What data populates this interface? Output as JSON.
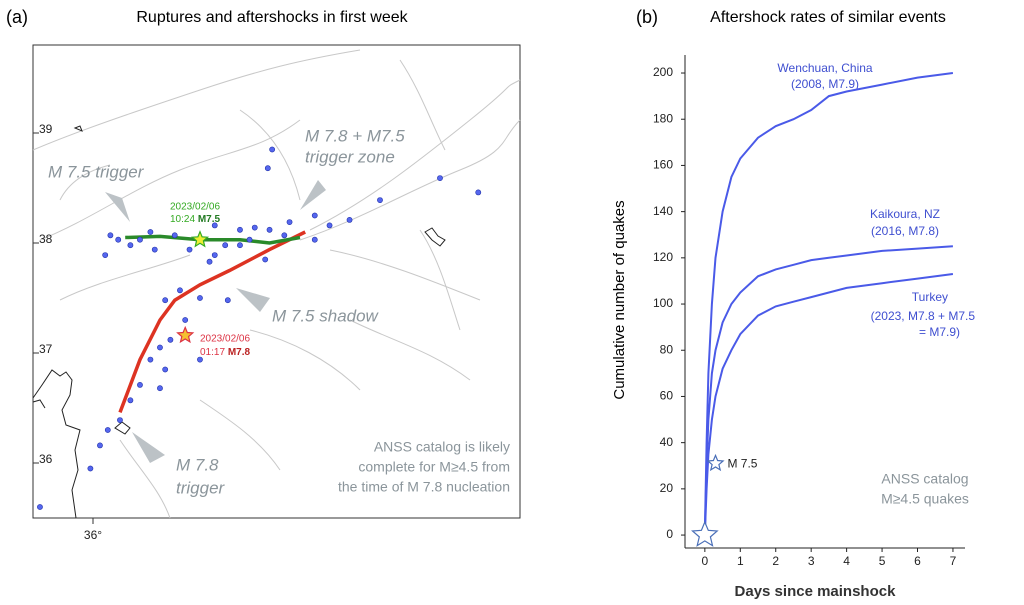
{
  "chart_data": [
    {
      "type": "map",
      "panel": "(a)",
      "title": "Ruptures and aftershocks in first week",
      "xlim": [
        35.31,
        40.91
      ],
      "ylim": [
        35.5,
        39.8
      ],
      "xticks": [
        {
          "value": 36,
          "label": "36°"
        }
      ],
      "yticks": [
        36,
        37,
        38,
        39
      ],
      "aftershocks": {
        "color": "#5566ee",
        "lon": [
          38.06,
          38.01,
          39.99,
          40.43,
          39.3,
          38.95,
          38.72,
          38.55,
          38.26,
          38.2,
          38.03,
          37.86,
          37.69,
          37.52,
          37.4,
          37.34,
          37.11,
          36.94,
          36.66,
          36.54,
          36.43,
          36.29,
          36.2,
          36.71,
          36.83,
          37.0,
          37.23,
          37.06,
          36.89,
          36.77,
          36.66,
          36.83,
          36.54,
          36.43,
          36.31,
          36.17,
          36.08,
          35.97,
          35.39,
          36.77,
          37.4,
          37.98,
          38.55,
          37.8,
          37.23,
          36.14,
          37.55,
          37.69
        ],
        "lat": [
          38.85,
          38.68,
          38.59,
          38.46,
          38.39,
          38.21,
          38.16,
          38.25,
          38.19,
          38.07,
          38.12,
          38.14,
          38.12,
          37.98,
          37.89,
          37.83,
          37.94,
          38.07,
          38.1,
          38.03,
          37.98,
          38.03,
          38.07,
          37.94,
          37.48,
          37.57,
          37.5,
          37.3,
          37.12,
          37.05,
          36.94,
          36.85,
          36.71,
          36.57,
          36.39,
          36.3,
          36.16,
          35.95,
          35.6,
          36.68,
          38.16,
          37.85,
          38.03,
          38.03,
          36.94,
          37.89,
          37.48,
          37.98
        ]
      },
      "ruptures": [
        {
          "color": "#dd3322",
          "lon": [
            36.31,
            36.54,
            36.77,
            36.94,
            37.23,
            37.57,
            38.03,
            38.44
          ],
          "lat": [
            36.46,
            36.94,
            37.3,
            37.48,
            37.62,
            37.75,
            37.94,
            38.1
          ]
        },
        {
          "color": "#2a8a2a",
          "lon": [
            36.37,
            36.77,
            37.23,
            37.69,
            38.03,
            38.38
          ],
          "lat": [
            38.05,
            38.06,
            38.03,
            38.03,
            38.0,
            38.05
          ]
        }
      ],
      "epicenters": [
        {
          "lon": 37.06,
          "lat": 37.16,
          "color": "#dd3344",
          "date": "2023/02/06",
          "time": "01:17",
          "magnitude": "M7.8"
        },
        {
          "lon": 37.23,
          "lat": 38.03,
          "color": "#33aa22",
          "date": "2023/02/06",
          "time": "10:24",
          "magnitude": "M7.5"
        }
      ],
      "annotations": [
        [
          "M 7.5 trigger"
        ],
        [
          "M 7.8 + M7.5",
          "trigger zone"
        ],
        [
          "M 7.5 shadow"
        ],
        [
          "M 7.8",
          "trigger"
        ]
      ],
      "note": [
        "ANSS catalog is likely",
        "complete for M≥4.5 from",
        "the time of M 7.8 nucleation"
      ]
    },
    {
      "type": "line",
      "panel": "(b)",
      "title": "Aftershock rates of similar events",
      "x_label": "Days since mainshock",
      "y_label": "Cumulative number of quakes",
      "xlim": [
        -0.56,
        7.34
      ],
      "ylim": [
        -5.6,
        207.8
      ],
      "xticks": [
        0,
        1,
        2,
        3,
        4,
        5,
        6,
        7
      ],
      "yticks": [
        0,
        20,
        40,
        60,
        80,
        100,
        120,
        140,
        160,
        180,
        200
      ],
      "x": [
        0,
        0.05,
        0.1,
        0.2,
        0.3,
        0.5,
        0.75,
        1,
        1.5,
        2,
        2.5,
        3,
        3.5,
        4,
        5,
        6,
        7
      ],
      "series": [
        {
          "name": "Wenchuan, China",
          "note": [
            "(2008, M7.9)"
          ],
          "color": "#4a5ae8",
          "values": [
            0,
            40,
            70,
            100,
            120,
            140,
            155,
            163,
            172,
            177,
            180,
            184,
            190,
            192,
            195,
            198,
            200
          ]
        },
        {
          "name": "Kaikoura, NZ",
          "note": [
            "(2016, M7.8)"
          ],
          "color": "#4a5ae8",
          "values": [
            0,
            30,
            50,
            70,
            80,
            92,
            100,
            105,
            112,
            115,
            117,
            119,
            120,
            121,
            123,
            124,
            125
          ]
        },
        {
          "name": "Turkey",
          "note": [
            "(2023, M7.8 + M7.5",
            "= M7.9)"
          ],
          "color": "#4a5ae8",
          "values": [
            0,
            20,
            35,
            50,
            60,
            72,
            80,
            87,
            95,
            99,
            101,
            103,
            105,
            107,
            109,
            111,
            113
          ]
        }
      ],
      "markers": [
        {
          "x": 0,
          "y": 0
        },
        {
          "x": 0.3,
          "y": 31,
          "label": "M 7.5"
        }
      ],
      "note": [
        "ANSS catalog",
        "M≥4.5 quakes"
      ]
    }
  ]
}
